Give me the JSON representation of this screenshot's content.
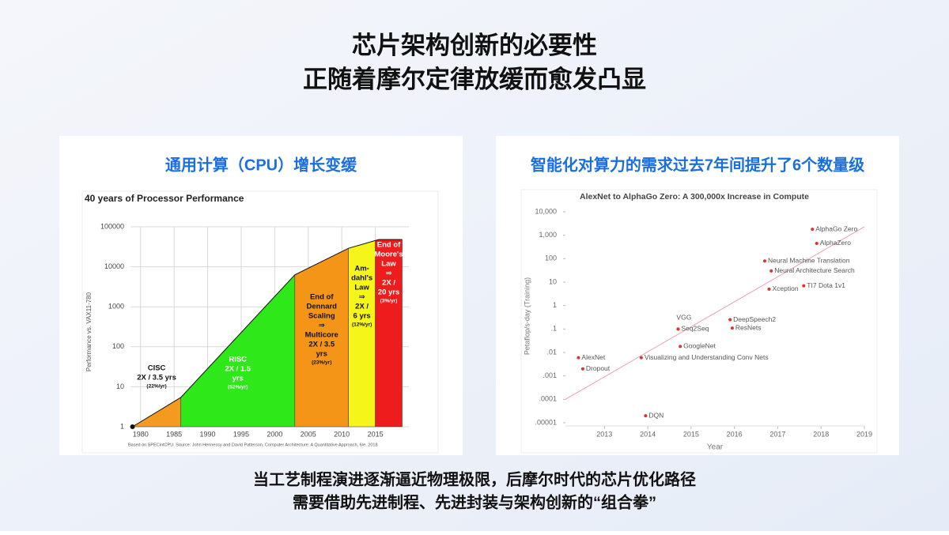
{
  "header": {
    "title": [
      "芯片架构创新的必要性",
      "正随着摩尔定律放缓而愈发凸显"
    ]
  },
  "panels": [
    {
      "heading": "通用计算（CPU）增长变缓"
    },
    {
      "heading": "智能化对算力的需求过去7年间提升了6个数量级"
    }
  ],
  "chart_data": [
    {
      "type": "area-line",
      "title": "40 years of Processor Performance",
      "y_label": "Performance vs. VAX11-780",
      "log_y": true,
      "source": "Based on SPECintCPU. Source: John Hennessy and David Patterson, Computer Architecture: A Quantitative Approach, 6/e. 2018",
      "xlim": [
        1978.5,
        2020
      ],
      "ylim": [
        1,
        100000
      ],
      "xticks": [
        1980,
        1985,
        1990,
        1995,
        2000,
        2005,
        2010,
        2015
      ],
      "yticks": [
        1,
        10,
        100,
        1000,
        10000,
        100000
      ],
      "grid": true,
      "series": [
        {
          "x": [
            1978.8,
            1986,
            2003,
            2011,
            2015.5,
            2019
          ],
          "values": [
            1,
            5.4,
            6300,
            29000,
            48000,
            48000
          ],
          "color": "#111111"
        }
      ],
      "regions": [
        {
          "x0": 1978.8,
          "x1": 1986,
          "color": "#f39a1f",
          "text_color": "#111111",
          "lines": [
            "CISC",
            "2X / 3.5 yrs"
          ],
          "rate": "(22%/yr)"
        },
        {
          "x0": 1986,
          "x1": 2003,
          "color": "#2ee81a",
          "text_color": "#ffffff",
          "lines": [
            "RISC",
            "2X / 1.5",
            "yrs"
          ],
          "rate": "(52%/yr)"
        },
        {
          "x0": 2003,
          "x1": 2011,
          "color": "#f59518",
          "text_color": "#111111",
          "lines": [
            "End of",
            "Dennard",
            "Scaling",
            "⇒",
            "Multicore",
            "2X / 3.5",
            "yrs"
          ],
          "rate": "(23%/yr)"
        },
        {
          "x0": 2011,
          "x1": 2015,
          "color": "#f5f51a",
          "text_color": "#111111",
          "lines": [
            "Am-",
            "dahl's",
            "Law",
            "⇒",
            "2X /",
            "6 yrs"
          ],
          "rate": "(12%/yr)"
        },
        {
          "x0": 2015,
          "x1": 2019,
          "color": "#ee1c1c",
          "text_color": "#ffffff",
          "lines": [
            "End of",
            "Moore's",
            "Law",
            "⇒",
            "2X /",
            "20 yrs"
          ],
          "rate": "(3%/yr)"
        }
      ]
    },
    {
      "type": "scatter",
      "title": "AlexNet to AlphaGo Zero: A 300,000x Increase in Compute",
      "x_label": "Year",
      "y_label": "Petaflop/s-day (Training)",
      "log_y": true,
      "xlim": [
        2012.1,
        2019
      ],
      "ylim": [
        1e-05,
        10000
      ],
      "xticks": [
        2013,
        2014,
        2015,
        2016,
        2017,
        2018,
        2019
      ],
      "yticks": [
        {
          "value": 10000,
          "label": "10,000"
        },
        {
          "value": 1000,
          "label": "1,000"
        },
        100,
        10,
        1,
        {
          "value": 0.1,
          "label": ".1"
        },
        {
          "value": 0.01,
          "label": ".01"
        },
        {
          "value": 0.001,
          "label": ".001"
        },
        {
          "value": 0.0001,
          "label": ".0001"
        },
        {
          "value": 1e-05,
          "label": ".00001"
        }
      ],
      "color": "#e03030",
      "trend_color": "#e8a0b0",
      "labels": [
        "AlexNet",
        "Dropout",
        "DQN",
        "Visualizing and Understanding Conv Nets",
        "VGG",
        "Seq2Seq",
        "GoogleNet",
        "DeepSpeech2",
        "ResNets",
        "Neural Machine Translation",
        "Neural Architecture Search",
        "Xception",
        "TI7 Dota 1v1",
        "AlphaGo Zero",
        "AlphaZero"
      ],
      "x": [
        2012.4,
        2012.5,
        2013.95,
        2013.85,
        2014.7,
        2014.7,
        2014.75,
        2015.9,
        2015.95,
        2016.7,
        2016.85,
        2016.8,
        2017.6,
        2017.8,
        2017.9
      ],
      "values": [
        0.006,
        0.002,
        2e-05,
        0.006,
        0.1,
        0.1,
        0.018,
        0.25,
        0.11,
        80,
        30,
        5,
        7,
        1800,
        450
      ],
      "trend": {
        "x": [
          2012.1,
          2019
        ],
        "values": [
          0.0001,
          2300
        ]
      }
    }
  ],
  "footer": [
    "当工艺制程演进逐渐逼近物理极限，后摩尔时代的芯片优化路径",
    "需要借助先进制程、先进封装与架构创新的“组合拳”"
  ]
}
